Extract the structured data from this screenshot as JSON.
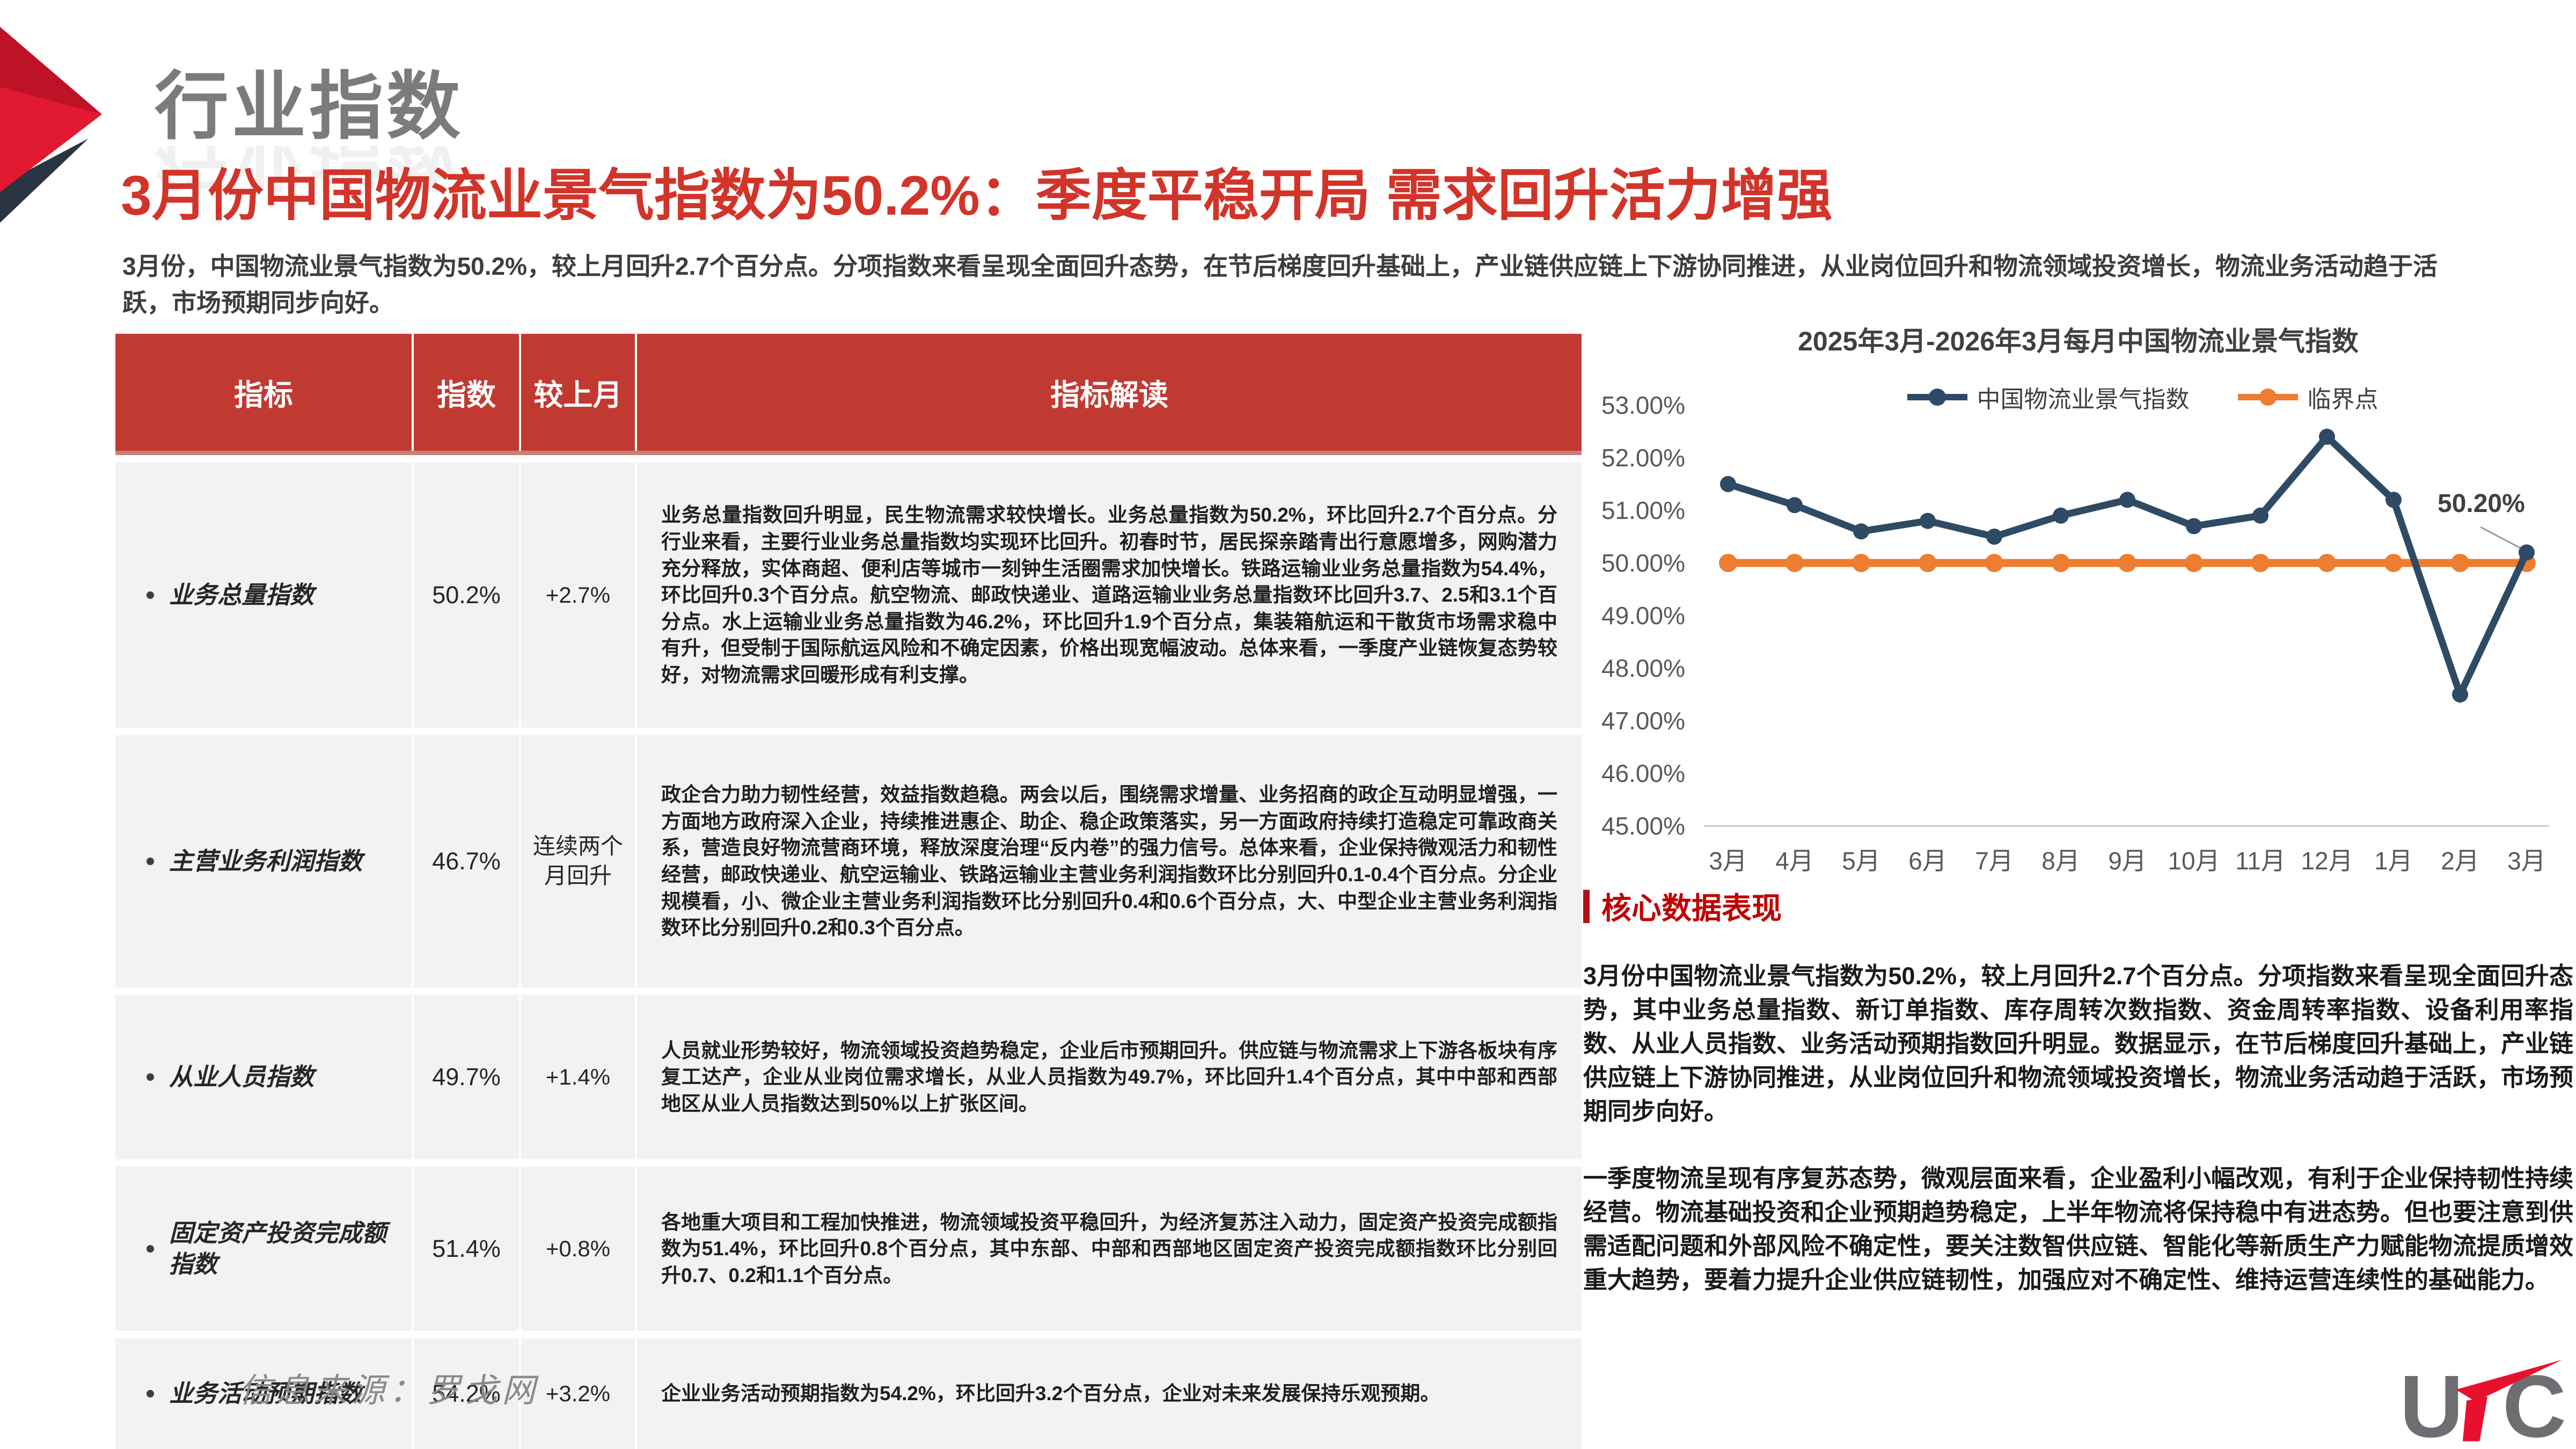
{
  "slide": {
    "section_title": "行业指数",
    "headline": "3月份中国物流业景气指数为50.2%：季度平稳开局 需求回升活力增强",
    "intro": "3月份，中国物流业景气指数为50.2%，较上月回升2.7个百分点。分项指数来看呈现全面回升态势，在节后梯度回升基础上，产业链供应链上下游协同推进，从业岗位回升和物流领域投资增长，物流业务活动趋于活跃，市场预期同步向好。",
    "source_note": "信息来源：罗戈网"
  },
  "table": {
    "headers": [
      "指标",
      "指数",
      "较上月",
      "指标解读"
    ],
    "rows": [
      {
        "name": "业务总量指数",
        "value": "50.2%",
        "change": "+2.7%",
        "interpretation": "业务总量指数回升明显，民生物流需求较快增长。业务总量指数为50.2%，环比回升2.7个百分点。分行业来看，主要行业业务总量指数均实现环比回升。初春时节，居民探亲踏青出行意愿增多，网购潜力充分释放，实体商超、便利店等城市一刻钟生活圈需求加快增长。铁路运输业业务总量指数为54.4%，环比回升0.3个百分点。航空物流、邮政快递业、道路运输业业务总量指数环比回升3.7、2.5和3.1个百分点。水上运输业业务总量指数为46.2%，环比回升1.9个百分点，集装箱航运和干散货市场需求稳中有升，但受制于国际航运风险和不确定因素，价格出现宽幅波动。总体来看，一季度产业链恢复态势较好，对物流需求回暖形成有利支撑。"
      },
      {
        "name": "主营业务利润指数",
        "value": "46.7%",
        "change": "连续两个月回升",
        "interpretation": "政企合力助力韧性经营，效益指数趋稳。两会以后，围绕需求增量、业务招商的政企互动明显增强，一方面地方政府深入企业，持续推进惠企、助企、稳企政策落实，另一方面政府持续打造稳定可靠政商关系，营造良好物流营商环境，释放深度治理“反内卷”的强力信号。总体来看，企业保持微观活力和韧性经营，邮政快递业、航空运输业、铁路运输业主营业务利润指数环比分别回升0.1-0.4个百分点。分企业规模看，小、微企业主营业务利润指数环比分别回升0.4和0.6个百分点，大、中型企业主营业务利润指数环比分别回升0.2和0.3个百分点。"
      },
      {
        "name": "从业人员指数",
        "value": "49.7%",
        "change": "+1.4%",
        "interpretation": "人员就业形势较好，物流领域投资趋势稳定，企业后市预期回升。供应链与物流需求上下游各板块有序复工达产，企业从业岗位需求增长，从业人员指数为49.7%，环比回升1.4个百分点，其中中部和西部地区从业人员指数达到50%以上扩张区间。"
      },
      {
        "name": "固定资产投资完成额指数",
        "value": "51.4%",
        "change": "+0.8%",
        "interpretation": "各地重大项目和工程加快推进，物流领域投资平稳回升，为经济复苏注入动力，固定资产投资完成额指数为51.4%，环比回升0.8个百分点，其中东部、中部和西部地区固定资产投资完成额指数环比分别回升0.7、0.2和1.1个百分点。"
      },
      {
        "name": "业务活动预期指数",
        "value": "54.2%",
        "change": "+3.2%",
        "interpretation": "企业业务活动预期指数为54.2%，环比回升3.2个百分点，企业对未来发展保持乐观预期。"
      }
    ]
  },
  "chart_data": {
    "type": "line",
    "title": "2025年3月-2026年3月每月中国物流业景气指数",
    "categories": [
      "3月",
      "4月",
      "5月",
      "6月",
      "7月",
      "8月",
      "9月",
      "10月",
      "11月",
      "12月",
      "1月",
      "2月",
      "3月"
    ],
    "series": [
      {
        "name": "中国物流业景气指数",
        "color": "#2F4A64",
        "values": [
          51.5,
          51.1,
          50.6,
          50.8,
          50.5,
          50.9,
          51.2,
          50.7,
          50.9,
          52.4,
          51.2,
          47.5,
          50.2
        ]
      },
      {
        "name": "临界点",
        "color": "#ED7D31",
        "values": [
          50,
          50,
          50,
          50,
          50,
          50,
          50,
          50,
          50,
          50,
          50,
          50,
          50
        ]
      }
    ],
    "ylim": [
      45,
      53
    ],
    "ytick_step": 1,
    "ytick_format": "0.00%",
    "grid": "off",
    "legend_position": "top",
    "annotation": "50.20%"
  },
  "core": {
    "heading": "核心数据表现",
    "paragraph1": "3月份中国物流业景气指数为50.2%，较上月回升2.7个百分点。分项指数来看呈现全面回升态势，其中业务总量指数、新订单指数、库存周转次数指数、资金周转率指数、设备利用率指数、从业人员指数、业务活动预期指数回升明显。数据显示，在节后梯度回升基础上，产业链供应链上下游协同推进，从业岗位回升和物流领域投资增长，物流业务活动趋于活跃，市场预期同步向好。",
    "paragraph2": "一季度物流呈现有序复苏态势，微观层面来看，企业盈利小幅改观，有利于企业保持韧性持续经营。物流基础投资和企业预期趋势稳定，上半年物流将保持稳中有进态势。但也要注意到供需适配问题和外部风险不确定性，要关注数智供应链、智能化等新质生产力赋能物流提质增效重大趋势，要着力提升企业供应链韧性，加强应对不确定性、维持运营连续性的基础能力。"
  },
  "logo": {
    "letter_u": "U",
    "letter_c": "C",
    "accent_color": "#E8112D",
    "letter_color": "#6d6e71"
  }
}
